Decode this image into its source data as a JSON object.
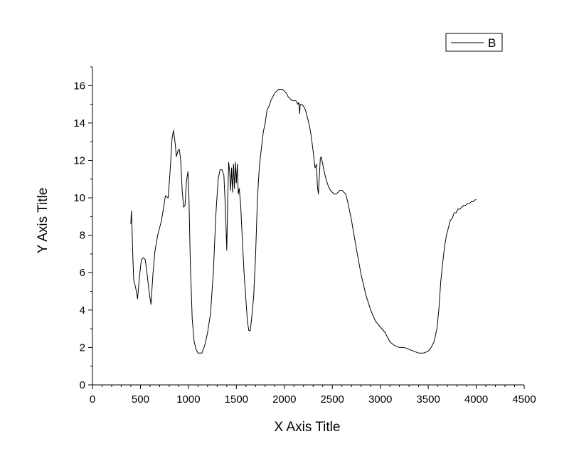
{
  "chart_data": {
    "type": "line",
    "title": "",
    "xlabel": "X Axis Title",
    "ylabel": "Y Axis Title",
    "xlim": [
      0,
      4500
    ],
    "ylim": [
      0,
      17
    ],
    "x_ticks": [
      0,
      500,
      1000,
      1500,
      2000,
      2500,
      3000,
      3500,
      4000,
      4500
    ],
    "y_ticks": [
      0,
      2,
      4,
      6,
      8,
      10,
      12,
      14,
      16
    ],
    "x_tick_labels": [
      "0",
      "500",
      "1000",
      "1500",
      "2000",
      "2500",
      "3000",
      "3500",
      "4000",
      "4500"
    ],
    "y_tick_labels": [
      "0",
      "2",
      "4",
      "6",
      "8",
      "10",
      "12",
      "14",
      "16"
    ],
    "grid": false,
    "legend_position": "top-right",
    "line_color": "#000000",
    "series": [
      {
        "name": "B",
        "points": [
          [
            400,
            8.6
          ],
          [
            405,
            9.3
          ],
          [
            410,
            8.8
          ],
          [
            420,
            7.0
          ],
          [
            430,
            5.6
          ],
          [
            450,
            5.2
          ],
          [
            470,
            4.6
          ],
          [
            490,
            5.8
          ],
          [
            510,
            6.7
          ],
          [
            530,
            6.8
          ],
          [
            550,
            6.7
          ],
          [
            570,
            5.9
          ],
          [
            590,
            5.0
          ],
          [
            610,
            4.3
          ],
          [
            630,
            5.9
          ],
          [
            650,
            7.1
          ],
          [
            680,
            8.0
          ],
          [
            720,
            8.8
          ],
          [
            760,
            10.1
          ],
          [
            790,
            10.0
          ],
          [
            810,
            11.5
          ],
          [
            830,
            13.2
          ],
          [
            845,
            13.6
          ],
          [
            860,
            13.0
          ],
          [
            875,
            12.2
          ],
          [
            890,
            12.5
          ],
          [
            905,
            12.6
          ],
          [
            920,
            12.0
          ],
          [
            935,
            10.4
          ],
          [
            950,
            9.5
          ],
          [
            965,
            9.6
          ],
          [
            980,
            10.9
          ],
          [
            995,
            11.4
          ],
          [
            1005,
            10.2
          ],
          [
            1020,
            6.5
          ],
          [
            1040,
            3.5
          ],
          [
            1060,
            2.3
          ],
          [
            1080,
            1.9
          ],
          [
            1100,
            1.7
          ],
          [
            1140,
            1.7
          ],
          [
            1170,
            2.1
          ],
          [
            1200,
            2.8
          ],
          [
            1230,
            3.8
          ],
          [
            1260,
            6.0
          ],
          [
            1285,
            9.0
          ],
          [
            1310,
            11.0
          ],
          [
            1330,
            11.5
          ],
          [
            1350,
            11.5
          ],
          [
            1370,
            11.2
          ],
          [
            1385,
            9.5
          ],
          [
            1395,
            8.0
          ],
          [
            1400,
            7.2
          ],
          [
            1410,
            10.0
          ],
          [
            1420,
            11.9
          ],
          [
            1430,
            11.4
          ],
          [
            1440,
            10.4
          ],
          [
            1450,
            11.6
          ],
          [
            1460,
            10.3
          ],
          [
            1470,
            11.8
          ],
          [
            1480,
            10.5
          ],
          [
            1490,
            11.9
          ],
          [
            1500,
            10.8
          ],
          [
            1510,
            11.8
          ],
          [
            1520,
            10.2
          ],
          [
            1530,
            10.5
          ],
          [
            1545,
            9.6
          ],
          [
            1560,
            8.0
          ],
          [
            1580,
            6.0
          ],
          [
            1600,
            4.5
          ],
          [
            1615,
            3.4
          ],
          [
            1630,
            2.9
          ],
          [
            1645,
            2.9
          ],
          [
            1660,
            3.6
          ],
          [
            1680,
            4.7
          ],
          [
            1700,
            6.9
          ],
          [
            1720,
            10.0
          ],
          [
            1740,
            11.7
          ],
          [
            1760,
            12.6
          ],
          [
            1780,
            13.5
          ],
          [
            1800,
            14.0
          ],
          [
            1820,
            14.7
          ],
          [
            1840,
            14.9
          ],
          [
            1860,
            15.2
          ],
          [
            1880,
            15.4
          ],
          [
            1900,
            15.6
          ],
          [
            1920,
            15.7
          ],
          [
            1940,
            15.8
          ],
          [
            1960,
            15.8
          ],
          [
            1980,
            15.8
          ],
          [
            2000,
            15.7
          ],
          [
            2020,
            15.6
          ],
          [
            2040,
            15.4
          ],
          [
            2060,
            15.3
          ],
          [
            2080,
            15.2
          ],
          [
            2100,
            15.2
          ],
          [
            2120,
            15.2
          ],
          [
            2140,
            15.0
          ],
          [
            2150,
            15.1
          ],
          [
            2160,
            14.5
          ],
          [
            2165,
            15.0
          ],
          [
            2180,
            15.0
          ],
          [
            2200,
            14.9
          ],
          [
            2220,
            14.7
          ],
          [
            2240,
            14.3
          ],
          [
            2260,
            13.9
          ],
          [
            2280,
            13.3
          ],
          [
            2300,
            12.5
          ],
          [
            2320,
            11.6
          ],
          [
            2335,
            11.8
          ],
          [
            2345,
            10.6
          ],
          [
            2355,
            10.2
          ],
          [
            2365,
            11.2
          ],
          [
            2375,
            12.1
          ],
          [
            2385,
            12.2
          ],
          [
            2400,
            11.8
          ],
          [
            2420,
            11.3
          ],
          [
            2440,
            10.9
          ],
          [
            2460,
            10.6
          ],
          [
            2480,
            10.4
          ],
          [
            2500,
            10.3
          ],
          [
            2520,
            10.2
          ],
          [
            2540,
            10.2
          ],
          [
            2560,
            10.3
          ],
          [
            2580,
            10.4
          ],
          [
            2600,
            10.4
          ],
          [
            2620,
            10.3
          ],
          [
            2640,
            10.2
          ],
          [
            2660,
            9.8
          ],
          [
            2700,
            8.8
          ],
          [
            2750,
            7.3
          ],
          [
            2800,
            5.9
          ],
          [
            2850,
            4.8
          ],
          [
            2900,
            4.0
          ],
          [
            2950,
            3.4
          ],
          [
            3000,
            3.1
          ],
          [
            3050,
            2.8
          ],
          [
            3100,
            2.3
          ],
          [
            3150,
            2.1
          ],
          [
            3200,
            2.0
          ],
          [
            3250,
            2.0
          ],
          [
            3300,
            1.9
          ],
          [
            3350,
            1.8
          ],
          [
            3400,
            1.7
          ],
          [
            3450,
            1.7
          ],
          [
            3500,
            1.8
          ],
          [
            3530,
            2.0
          ],
          [
            3560,
            2.3
          ],
          [
            3590,
            3.0
          ],
          [
            3610,
            4.0
          ],
          [
            3630,
            5.5
          ],
          [
            3650,
            6.5
          ],
          [
            3670,
            7.4
          ],
          [
            3690,
            8.0
          ],
          [
            3710,
            8.4
          ],
          [
            3730,
            8.8
          ],
          [
            3750,
            8.9
          ],
          [
            3770,
            9.2
          ],
          [
            3790,
            9.2
          ],
          [
            3810,
            9.4
          ],
          [
            3830,
            9.4
          ],
          [
            3850,
            9.5
          ],
          [
            3870,
            9.6
          ],
          [
            3890,
            9.6
          ],
          [
            3910,
            9.7
          ],
          [
            3930,
            9.7
          ],
          [
            3950,
            9.8
          ],
          [
            3970,
            9.8
          ],
          [
            3990,
            9.9
          ],
          [
            4000,
            9.9
          ]
        ]
      }
    ]
  }
}
